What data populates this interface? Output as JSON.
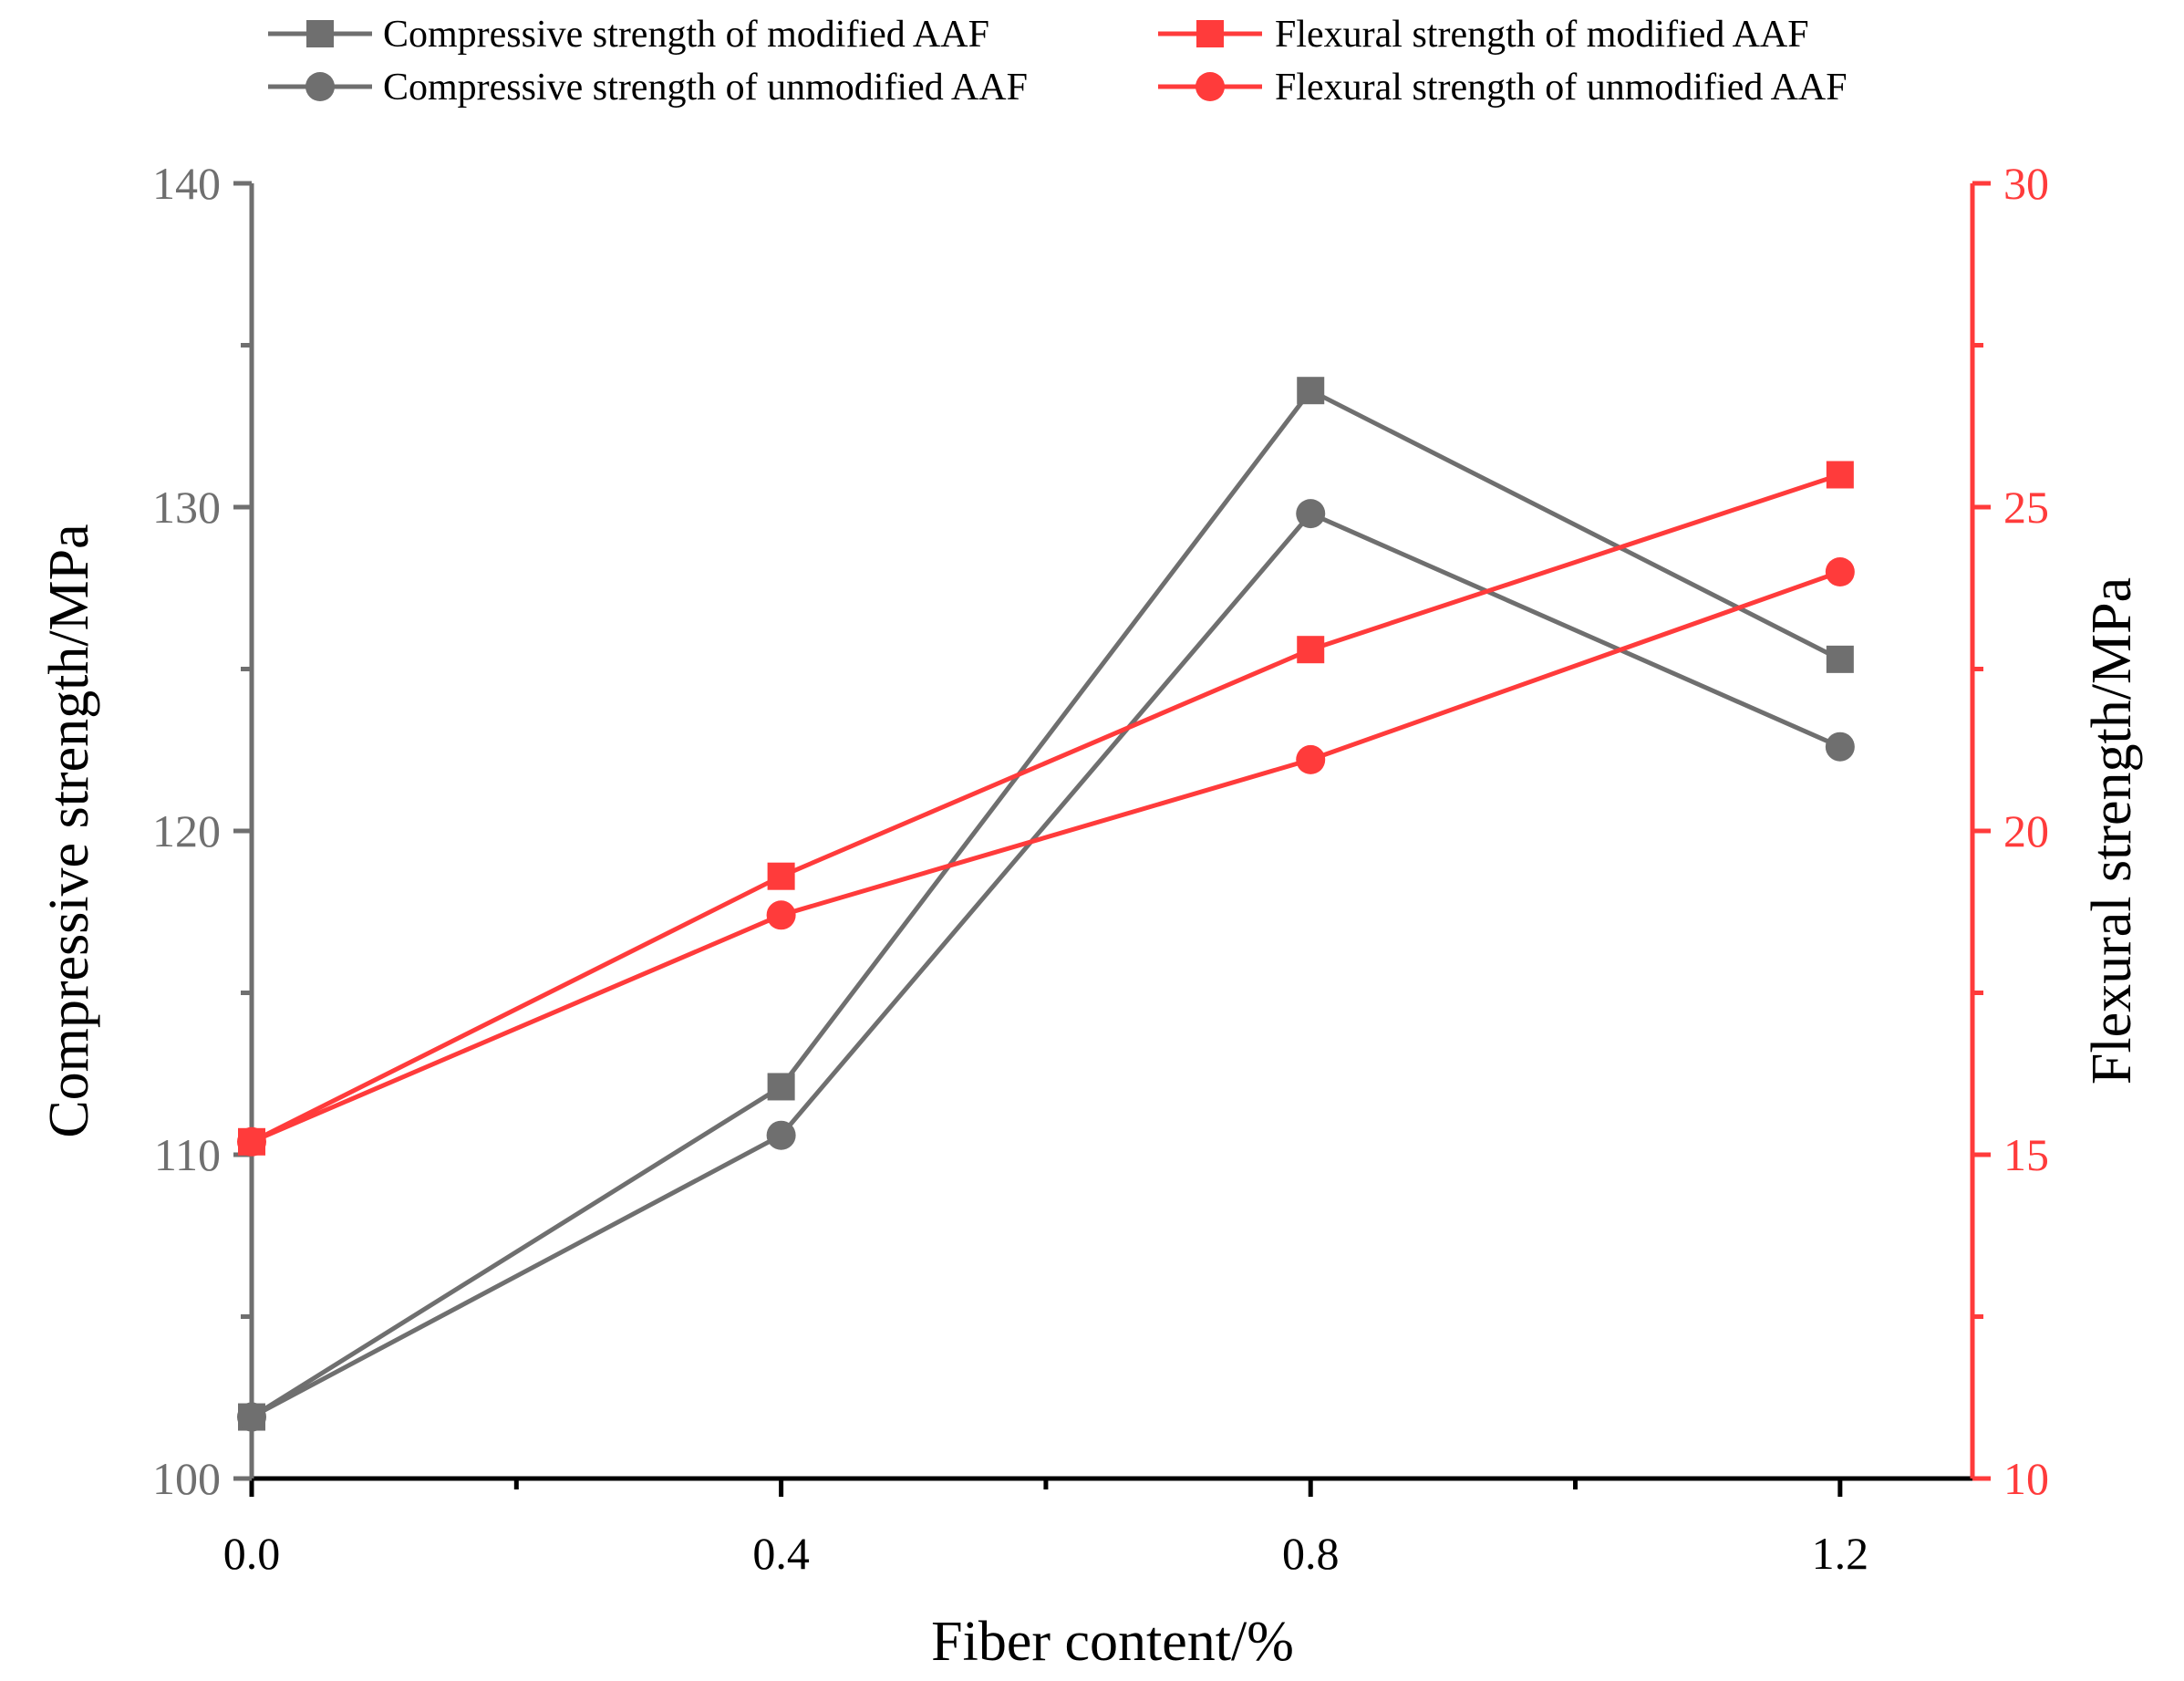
{
  "chart_data": {
    "type": "line",
    "x": [
      0.0,
      0.4,
      0.8,
      1.2
    ],
    "x_tick_labels": [
      "0.0",
      "0.4",
      "0.8",
      "1.2"
    ],
    "xlabel": "Fiber content/%",
    "xlim": [
      0.0,
      1.3
    ],
    "y_left": {
      "label": "Compressive strength/MPa",
      "ylim": [
        100,
        140
      ],
      "ticks": [
        100,
        110,
        120,
        130,
        140
      ],
      "tick_labels": [
        "100",
        "110",
        "120",
        "130",
        "140"
      ],
      "color": "#6f6f6f"
    },
    "y_right": {
      "label": "Flexural strength/MPa",
      "ylim": [
        10,
        30
      ],
      "ticks": [
        10,
        15,
        20,
        25,
        30
      ],
      "tick_labels": [
        "10",
        "15",
        "20",
        "25",
        "30"
      ],
      "color": "#ff3b3b"
    },
    "series": [
      {
        "name": "Compressive strength of modified AAF",
        "axis": "left",
        "marker": "square",
        "color": "#6f6f6f",
        "values": [
          101.9,
          112.1,
          133.6,
          125.3
        ]
      },
      {
        "name": "Compressive strength of unmodified AAF",
        "axis": "left",
        "marker": "circle",
        "color": "#6f6f6f",
        "values": [
          101.9,
          110.6,
          129.8,
          122.6
        ]
      },
      {
        "name": "Flexural strength of modified AAF",
        "axis": "right",
        "marker": "square",
        "color": "#ff3b3b",
        "values": [
          15.2,
          19.3,
          22.8,
          25.5
        ]
      },
      {
        "name": "Flexural strength of unmodified AAF",
        "axis": "right",
        "marker": "circle",
        "color": "#ff3b3b",
        "values": [
          15.2,
          18.7,
          21.1,
          24.0
        ]
      }
    ]
  }
}
